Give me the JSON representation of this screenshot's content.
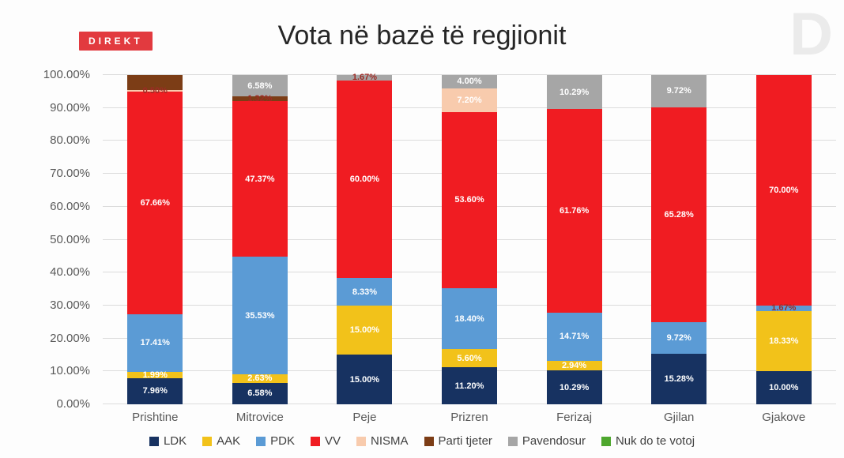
{
  "header": {
    "badge": "DIREKT",
    "title": "Vota në bazë të regjionit",
    "watermark": "D"
  },
  "colors": {
    "badge_bg": "#e23a3f",
    "badge_text": "#ffffff",
    "title_text": "#262626",
    "watermark_text": "#ebebeb",
    "grid": "#dcdcdc",
    "axis_text": "#595959",
    "sliver_label_text": "#9e2b25"
  },
  "chart_data": {
    "type": "bar",
    "subtype": "stacked-percent",
    "title": "Vota në bazë të regjionit",
    "xlabel": "",
    "ylabel": "",
    "ylim": [
      0,
      100
    ],
    "grid": true,
    "legend_position": "bottom",
    "yticks": [
      "0.00%",
      "10.00%",
      "20.00%",
      "30.00%",
      "40.00%",
      "50.00%",
      "60.00%",
      "70.00%",
      "80.00%",
      "90.00%",
      "100.00%"
    ],
    "parties": [
      {
        "name": "LDK",
        "color": "#173261"
      },
      {
        "name": "AAK",
        "color": "#f2c21a"
      },
      {
        "name": "PDK",
        "color": "#5b9bd5"
      },
      {
        "name": "VV",
        "color": "#f01c22"
      },
      {
        "name": "NISMA",
        "color": "#f8cbad"
      },
      {
        "name": "Parti tjeter",
        "color": "#7c3d16"
      },
      {
        "name": "Pavendosur",
        "color": "#a6a6a6"
      },
      {
        "name": "Nuk do te votoj",
        "color": "#4ea72e"
      }
    ],
    "categories": [
      "Prishtine",
      "Mitrovice",
      "Peje",
      "Prizren",
      "Ferizaj",
      "Gjilan",
      "Gjakove"
    ],
    "regions": [
      {
        "name": "Prishtine",
        "segments": [
          {
            "party": "LDK",
            "value": 7.96,
            "label": "7.96%"
          },
          {
            "party": "AAK",
            "value": 1.99,
            "label": "1.99%"
          },
          {
            "party": "PDK",
            "value": 17.41,
            "label": "17.41%"
          },
          {
            "party": "VV",
            "value": 67.66,
            "label": "67.66%"
          },
          {
            "party": "NISMA",
            "value": 0.5,
            "label": "0.50%",
            "label_color": "#9e2b25"
          },
          {
            "party": "Parti tjeter",
            "value": 4.48,
            "label": ""
          }
        ]
      },
      {
        "name": "Mitrovice",
        "segments": [
          {
            "party": "LDK",
            "value": 6.58,
            "label": "6.58%"
          },
          {
            "party": "AAK",
            "value": 2.63,
            "label": "2.63%"
          },
          {
            "party": "PDK",
            "value": 35.53,
            "label": "35.53%"
          },
          {
            "party": "VV",
            "value": 47.37,
            "label": "47.37%"
          },
          {
            "party": "Parti tjeter",
            "value": 1.32,
            "label": "1.32%",
            "label_color": "#9e2b25"
          },
          {
            "party": "Pavendosur",
            "value": 6.58,
            "label": "6.58%"
          }
        ]
      },
      {
        "name": "Peje",
        "segments": [
          {
            "party": "LDK",
            "value": 15.0,
            "label": "15.00%"
          },
          {
            "party": "AAK",
            "value": 15.0,
            "label": "15.00%"
          },
          {
            "party": "PDK",
            "value": 8.33,
            "label": "8.33%"
          },
          {
            "party": "VV",
            "value": 60.0,
            "label": "60.00%"
          },
          {
            "party": "Pavendosur",
            "value": 1.67,
            "label": "1.67%",
            "label_color": "#9e2b25"
          }
        ]
      },
      {
        "name": "Prizren",
        "segments": [
          {
            "party": "LDK",
            "value": 11.2,
            "label": "11.20%"
          },
          {
            "party": "AAK",
            "value": 5.6,
            "label": "5.60%"
          },
          {
            "party": "PDK",
            "value": 18.4,
            "label": "18.40%"
          },
          {
            "party": "VV",
            "value": 53.6,
            "label": "53.60%"
          },
          {
            "party": "NISMA",
            "value": 7.2,
            "label": "7.20%"
          },
          {
            "party": "Pavendosur",
            "value": 4.0,
            "label": "4.00%"
          }
        ]
      },
      {
        "name": "Ferizaj",
        "segments": [
          {
            "party": "LDK",
            "value": 10.29,
            "label": "10.29%"
          },
          {
            "party": "AAK",
            "value": 2.94,
            "label": "2.94%"
          },
          {
            "party": "PDK",
            "value": 14.71,
            "label": "14.71%"
          },
          {
            "party": "VV",
            "value": 61.76,
            "label": "61.76%"
          },
          {
            "party": "Pavendosur",
            "value": 10.29,
            "label": "10.29%"
          }
        ]
      },
      {
        "name": "Gjilan",
        "segments": [
          {
            "party": "LDK",
            "value": 15.28,
            "label": "15.28%"
          },
          {
            "party": "PDK",
            "value": 9.72,
            "label": "9.72%"
          },
          {
            "party": "VV",
            "value": 65.28,
            "label": "65.28%"
          },
          {
            "party": "Pavendosur",
            "value": 9.72,
            "label": "9.72%"
          }
        ]
      },
      {
        "name": "Gjakove",
        "segments": [
          {
            "party": "LDK",
            "value": 10.0,
            "label": "10.00%"
          },
          {
            "party": "AAK",
            "value": 18.33,
            "label": "18.33%"
          },
          {
            "party": "PDK",
            "value": 1.67,
            "label": "1.67%",
            "label_color": "#9e2b25"
          },
          {
            "party": "VV",
            "value": 70.0,
            "label": "70.00%"
          }
        ]
      }
    ]
  }
}
